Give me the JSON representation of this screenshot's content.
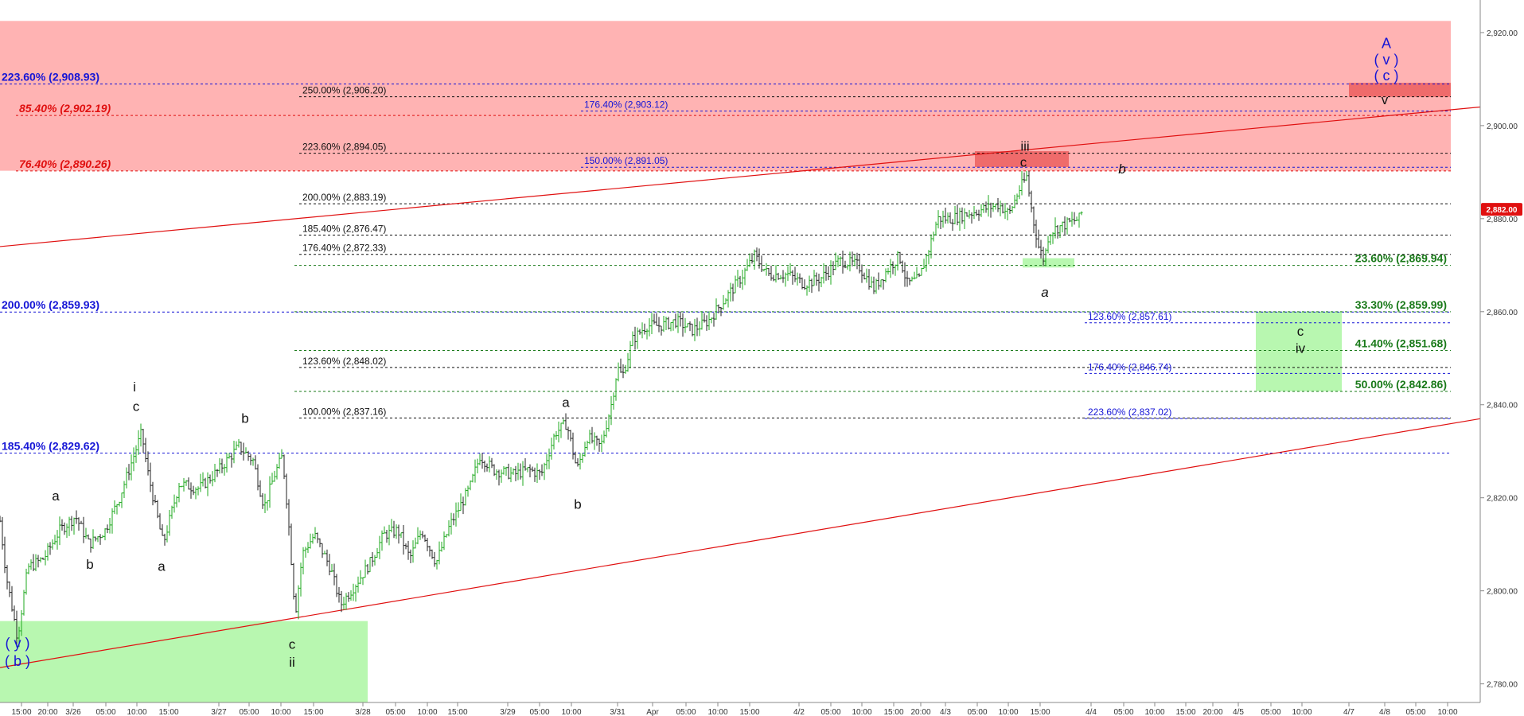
{
  "colors": {
    "red_zone": "#ffb3b3",
    "red_box": "#ef6b6b",
    "green_zone": "#b8f7b0",
    "blue": "#1515d6",
    "red": "#e01010",
    "green": "#1a7a1a",
    "black": "#111111",
    "price_badge": "#e01010"
  },
  "chart_data": {
    "type": "line",
    "subtype": "ohlc-bars",
    "title": "",
    "xlabel": "",
    "ylabel": "",
    "ylim": [
      2776,
      2927
    ],
    "y_ticks": [
      {
        "value": 2780,
        "label": "2,780.00"
      },
      {
        "value": 2800,
        "label": "2,800.00"
      },
      {
        "value": 2820,
        "label": "2,820.00"
      },
      {
        "value": 2840,
        "label": "2,840.00"
      },
      {
        "value": 2860,
        "label": "2,860.00"
      },
      {
        "value": 2880,
        "label": "2,880.00"
      },
      {
        "value": 2900,
        "label": "2,900.00"
      },
      {
        "value": 2920,
        "label": "2,920.00"
      }
    ],
    "current_price": {
      "value": 2882,
      "label": "2,882.00"
    },
    "x_ticks": [
      {
        "label": "15:00",
        "i": 27
      },
      {
        "label": "20:00",
        "i": 60
      },
      {
        "label": "3/26",
        "i": 92
      },
      {
        "label": "05:00",
        "i": 133
      },
      {
        "label": "10:00",
        "i": 172
      },
      {
        "label": "15:00",
        "i": 212
      },
      {
        "label": "3/27",
        "i": 275
      },
      {
        "label": "05:00",
        "i": 313
      },
      {
        "label": "10:00",
        "i": 353
      },
      {
        "label": "15:00",
        "i": 394
      },
      {
        "label": "3/28",
        "i": 456
      },
      {
        "label": "05:00",
        "i": 497
      },
      {
        "label": "10:00",
        "i": 537
      },
      {
        "label": "15:00",
        "i": 575
      },
      {
        "label": "3/29",
        "i": 638
      },
      {
        "label": "05:00",
        "i": 678
      },
      {
        "label": "10:00",
        "i": 718
      },
      {
        "label": "3/31",
        "i": 776
      },
      {
        "label": "Apr",
        "i": 820
      },
      {
        "label": "05:00",
        "i": 862
      },
      {
        "label": "10:00",
        "i": 902
      },
      {
        "label": "15:00",
        "i": 942
      },
      {
        "label": "4/2",
        "i": 1004
      },
      {
        "label": "05:00",
        "i": 1044
      },
      {
        "label": "10:00",
        "i": 1083
      },
      {
        "label": "15:00",
        "i": 1123
      },
      {
        "label": "20:00",
        "i": 1157
      },
      {
        "label": "4/3",
        "i": 1188
      },
      {
        "label": "05:00",
        "i": 1228
      },
      {
        "label": "10:00",
        "i": 1267
      },
      {
        "label": "15:00",
        "i": 1307
      },
      {
        "label": "4/4",
        "i": 1371
      },
      {
        "label": "05:00",
        "i": 1412
      },
      {
        "label": "10:00",
        "i": 1451
      },
      {
        "label": "15:00",
        "i": 1490
      },
      {
        "label": "20:00",
        "i": 1524
      },
      {
        "label": "4/5",
        "i": 1556
      },
      {
        "label": "05:00",
        "i": 1597
      },
      {
        "label": "10:00",
        "i": 1636
      },
      {
        "label": "4/7",
        "i": 1695
      },
      {
        "label": "4/8",
        "i": 1740
      },
      {
        "label": "05:00",
        "i": 1779
      },
      {
        "label": "10:00",
        "i": 1819
      }
    ],
    "path_points": [
      [
        0,
        2815
      ],
      [
        8,
        2803
      ],
      [
        22,
        2790
      ],
      [
        35,
        2805
      ],
      [
        55,
        2807
      ],
      [
        75,
        2813
      ],
      [
        95,
        2816
      ],
      [
        112,
        2810
      ],
      [
        132,
        2813
      ],
      [
        150,
        2820
      ],
      [
        170,
        2830
      ],
      [
        178,
        2834
      ],
      [
        185,
        2826
      ],
      [
        205,
        2810
      ],
      [
        225,
        2823
      ],
      [
        250,
        2822
      ],
      [
        275,
        2826
      ],
      [
        300,
        2831
      ],
      [
        318,
        2828
      ],
      [
        332,
        2818
      ],
      [
        345,
        2825
      ],
      [
        355,
        2829
      ],
      [
        362,
        2816
      ],
      [
        371,
        2795
      ],
      [
        380,
        2808
      ],
      [
        395,
        2812
      ],
      [
        415,
        2805
      ],
      [
        428,
        2797
      ],
      [
        445,
        2801
      ],
      [
        465,
        2806
      ],
      [
        482,
        2812
      ],
      [
        500,
        2813
      ],
      [
        515,
        2807
      ],
      [
        530,
        2813
      ],
      [
        548,
        2806
      ],
      [
        565,
        2814
      ],
      [
        590,
        2822
      ],
      [
        603,
        2829
      ],
      [
        620,
        2826
      ],
      [
        645,
        2825
      ],
      [
        665,
        2826
      ],
      [
        680,
        2825
      ],
      [
        698,
        2834
      ],
      [
        712,
        2836
      ],
      [
        725,
        2826
      ],
      [
        738,
        2833
      ],
      [
        755,
        2831
      ],
      [
        768,
        2840
      ],
      [
        776,
        2848
      ],
      [
        782,
        2846
      ],
      [
        795,
        2854
      ],
      [
        812,
        2857
      ],
      [
        830,
        2857
      ],
      [
        850,
        2858
      ],
      [
        870,
        2856
      ],
      [
        890,
        2858
      ],
      [
        912,
        2863
      ],
      [
        930,
        2867
      ],
      [
        948,
        2872
      ],
      [
        965,
        2868
      ],
      [
        990,
        2868
      ],
      [
        1010,
        2866
      ],
      [
        1030,
        2867
      ],
      [
        1055,
        2871
      ],
      [
        1078,
        2870
      ],
      [
        1098,
        2865
      ],
      [
        1115,
        2869
      ],
      [
        1130,
        2872
      ],
      [
        1140,
        2866
      ],
      [
        1155,
        2867
      ],
      [
        1168,
        2874
      ],
      [
        1178,
        2880
      ],
      [
        1195,
        2880
      ],
      [
        1215,
        2881
      ],
      [
        1235,
        2882
      ],
      [
        1255,
        2883
      ],
      [
        1268,
        2881
      ],
      [
        1280,
        2886
      ],
      [
        1290,
        2889
      ],
      [
        1298,
        2880
      ],
      [
        1305,
        2874
      ],
      [
        1312,
        2871
      ],
      [
        1318,
        2877
      ],
      [
        1328,
        2878
      ],
      [
        1342,
        2879
      ],
      [
        1356,
        2880
      ],
      [
        1361,
        2882
      ]
    ],
    "trendlines": [
      {
        "from": [
          0,
          2783.5
        ],
        "to": [
          1860,
          2837
        ],
        "color": "#e01010"
      },
      {
        "from": [
          0,
          2874
        ],
        "to": [
          1860,
          2904
        ],
        "color": "#e01010"
      }
    ],
    "zones": [
      {
        "x0": 0,
        "x1": 1823,
        "y0": 2890.3,
        "y1": 2922.5,
        "color": "#ffb3b3"
      },
      {
        "x0": 0,
        "x1": 462,
        "y0": 2776,
        "y1": 2793.5,
        "color": "#b8f7b0"
      },
      {
        "x0": 1578,
        "x1": 1686,
        "y0": 2842.9,
        "y1": 2860,
        "color": "#b8f7b0"
      },
      {
        "x0": 1285,
        "x1": 1350,
        "y0": 2869.5,
        "y1": 2871.5,
        "color": "#b8f7b0"
      },
      {
        "x0": 1225,
        "x1": 1343,
        "y0": 2891.1,
        "y1": 2894.5,
        "color": "#ef6b6b"
      },
      {
        "x0": 1695,
        "x1": 1823,
        "y0": 2906.2,
        "y1": 2909.2,
        "color": "#ef6b6b"
      }
    ],
    "fib_levels": [
      {
        "label": "223.60% (2,908.93)",
        "value": 2908.93,
        "x0": 0,
        "x1": 1823,
        "color": "#1515d6",
        "lx": 2,
        "size": 14,
        "bold": true
      },
      {
        "label": "85.40% (2,902.19)",
        "value": 2902.19,
        "x0": 20,
        "x1": 1823,
        "color": "#e01010",
        "lx": 24,
        "size": 14,
        "bold": true,
        "italic": true
      },
      {
        "label": "76.40% (2,890.26)",
        "value": 2890.26,
        "x0": 20,
        "x1": 1823,
        "color": "#e01010",
        "lx": 24,
        "size": 14,
        "bold": true,
        "italic": true
      },
      {
        "label": "200.00% (2,859.93)",
        "value": 2859.93,
        "x0": 0,
        "x1": 1823,
        "color": "#1515d6",
        "lx": 2,
        "size": 14,
        "bold": true
      },
      {
        "label": "185.40% (2,829.62)",
        "value": 2829.62,
        "x0": 0,
        "x1": 1823,
        "color": "#1515d6",
        "lx": 2,
        "size": 14,
        "bold": true
      },
      {
        "label": "250.00% (2,906.20)",
        "value": 2906.2,
        "x0": 376,
        "x1": 1823,
        "color": "#111111",
        "lx": 380,
        "size": 12
      },
      {
        "label": "223.60% (2,894.05)",
        "value": 2894.05,
        "x0": 376,
        "x1": 1823,
        "color": "#111111",
        "lx": 380,
        "size": 12
      },
      {
        "label": "200.00% (2,883.19)",
        "value": 2883.19,
        "x0": 376,
        "x1": 1823,
        "color": "#111111",
        "lx": 380,
        "size": 12
      },
      {
        "label": "185.40% (2,876.47)",
        "value": 2876.47,
        "x0": 376,
        "x1": 1823,
        "color": "#111111",
        "lx": 380,
        "size": 12
      },
      {
        "label": "176.40% (2,872.33)",
        "value": 2872.33,
        "x0": 376,
        "x1": 1823,
        "color": "#111111",
        "lx": 380,
        "size": 12
      },
      {
        "label": "123.60% (2,848.02)",
        "value": 2848.02,
        "x0": 376,
        "x1": 1823,
        "color": "#111111",
        "lx": 380,
        "size": 12
      },
      {
        "label": "100.00% (2,837.16)",
        "value": 2837.16,
        "x0": 376,
        "x1": 1823,
        "color": "#111111",
        "lx": 380,
        "size": 12
      },
      {
        "label": "176.40% (2,903.12)",
        "value": 2903.12,
        "x0": 730,
        "x1": 1823,
        "color": "#1515d6",
        "lx": 734,
        "size": 12
      },
      {
        "label": "150.00% (2,891.05)",
        "value": 2891.05,
        "x0": 730,
        "x1": 1823,
        "color": "#1515d6",
        "lx": 734,
        "size": 12
      },
      {
        "label": "123.60% (2,857.61)",
        "value": 2857.61,
        "x0": 1363,
        "x1": 1823,
        "color": "#1515d6",
        "lx": 1367,
        "size": 12
      },
      {
        "label": "176.40% (2,846.74)",
        "value": 2846.74,
        "x0": 1363,
        "x1": 1823,
        "color": "#1515d6",
        "lx": 1367,
        "size": 12
      },
      {
        "label": "223.60% (2,837.02)",
        "value": 2837.02,
        "x0": 1363,
        "x1": 1823,
        "color": "#1515d6",
        "lx": 1367,
        "size": 12
      },
      {
        "label": "23.60% (2,869.94)",
        "value": 2869.94,
        "x0": 370,
        "x1": 1823,
        "color": "#1a7a1a",
        "lx": 1818,
        "anchor": "end",
        "size": 14,
        "bold": true
      },
      {
        "label": "33.30% (2,859.99)",
        "value": 2859.99,
        "x0": 370,
        "x1": 1823,
        "color": "#1a7a1a",
        "lx": 1818,
        "anchor": "end",
        "size": 14,
        "bold": true
      },
      {
        "label": "41.40% (2,851.68)",
        "value": 2851.68,
        "x0": 370,
        "x1": 1823,
        "color": "#1a7a1a",
        "lx": 1818,
        "anchor": "end",
        "size": 14,
        "bold": true
      },
      {
        "label": "50.00% (2,842.86)",
        "value": 2842.86,
        "x0": 370,
        "x1": 1823,
        "color": "#1a7a1a",
        "lx": 1818,
        "anchor": "end",
        "size": 14,
        "bold": true
      }
    ],
    "wave_labels": [
      {
        "text": "A",
        "x": 1742,
        "y": 2917.5,
        "color": "#1515d6",
        "size": 18
      },
      {
        "text": "( v )",
        "x": 1742,
        "y": 2914.0,
        "color": "#1515d6",
        "size": 18
      },
      {
        "text": "( c )",
        "x": 1742,
        "y": 2910.5,
        "color": "#1515d6",
        "size": 18
      },
      {
        "text": "v",
        "x": 1740,
        "y": 2905.4,
        "color": "#111111",
        "size": 17
      },
      {
        "text": "iii",
        "x": 1288,
        "y": 2895.4,
        "color": "#111111",
        "size": 17
      },
      {
        "text": "c",
        "x": 1286,
        "y": 2891.9,
        "color": "#111111",
        "size": 17
      },
      {
        "text": "b",
        "x": 1410,
        "y": 2890.5,
        "color": "#111111",
        "size": 17,
        "italic": true
      },
      {
        "text": "a",
        "x": 1313,
        "y": 2864.0,
        "color": "#111111",
        "size": 17,
        "italic": true
      },
      {
        "text": "c",
        "x": 1634,
        "y": 2855.6,
        "color": "#111111",
        "size": 17
      },
      {
        "text": "iv",
        "x": 1634,
        "y": 2851.9,
        "color": "#111111",
        "size": 17
      },
      {
        "text": "a",
        "x": 711,
        "y": 2840.3,
        "color": "#111111",
        "size": 17
      },
      {
        "text": "b",
        "x": 726,
        "y": 2818.4,
        "color": "#111111",
        "size": 17
      },
      {
        "text": "i",
        "x": 169,
        "y": 2843.6,
        "color": "#111111",
        "size": 17
      },
      {
        "text": "c",
        "x": 171,
        "y": 2839.4,
        "color": "#111111",
        "size": 17
      },
      {
        "text": "b",
        "x": 308,
        "y": 2836.9,
        "color": "#111111",
        "size": 17
      },
      {
        "text": "a",
        "x": 70,
        "y": 2820.2,
        "color": "#111111",
        "size": 17
      },
      {
        "text": "b",
        "x": 113,
        "y": 2805.5,
        "color": "#111111",
        "size": 17
      },
      {
        "text": "a",
        "x": 203,
        "y": 2805.1,
        "color": "#111111",
        "size": 17
      },
      {
        "text": "c",
        "x": 367,
        "y": 2788.3,
        "color": "#111111",
        "size": 17
      },
      {
        "text": "ii",
        "x": 367,
        "y": 2784.5,
        "color": "#111111",
        "size": 17
      },
      {
        "text": "( y )",
        "x": 22,
        "y": 2788.5,
        "color": "#1515d6",
        "size": 18
      },
      {
        "text": "( b )",
        "x": 22,
        "y": 2784.7,
        "color": "#1515d6",
        "size": 18
      }
    ]
  }
}
